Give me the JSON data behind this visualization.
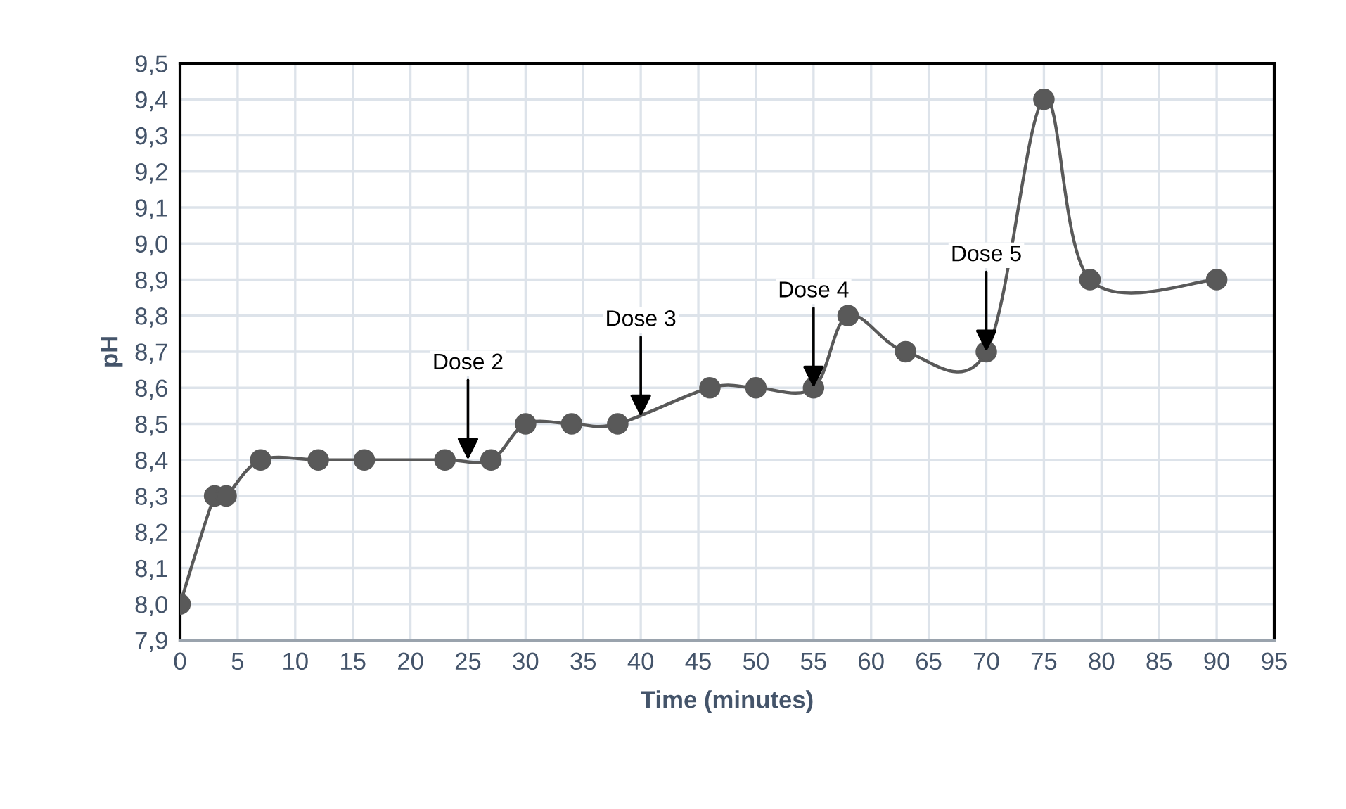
{
  "chart_data": {
    "type": "line",
    "xlabel": "Time (minutes)",
    "ylabel": "pH",
    "x": [
      0,
      3,
      4,
      7,
      12,
      16,
      23,
      27,
      30,
      34,
      38,
      46,
      50,
      55,
      58,
      63,
      70,
      75,
      79,
      90
    ],
    "series": [
      {
        "color": "#595959",
        "values": [
          8.0,
          8.3,
          8.3,
          8.4,
          8.4,
          8.4,
          8.4,
          8.4,
          8.5,
          8.5,
          8.5,
          8.6,
          8.6,
          8.6,
          8.8,
          8.7,
          8.7,
          9.4,
          8.9,
          8.9
        ]
      }
    ],
    "xlim": [
      0,
      95
    ],
    "xticks": [
      0,
      5,
      10,
      15,
      20,
      25,
      30,
      35,
      40,
      45,
      50,
      55,
      60,
      65,
      70,
      75,
      80,
      85,
      90,
      95
    ],
    "ylim": [
      7.9,
      9.5
    ],
    "yticks": [
      {
        "value": 7.9,
        "label": "7,9"
      },
      {
        "value": 8.0,
        "label": "8,0"
      },
      {
        "value": 8.1,
        "label": "8,1"
      },
      {
        "value": 8.2,
        "label": "8,2"
      },
      {
        "value": 8.3,
        "label": "8,3"
      },
      {
        "value": 8.4,
        "label": "8,4"
      },
      {
        "value": 8.5,
        "label": "8,5"
      },
      {
        "value": 8.6,
        "label": "8,6"
      },
      {
        "value": 8.7,
        "label": "8,7"
      },
      {
        "value": 8.8,
        "label": "8,8"
      },
      {
        "value": 8.9,
        "label": "8,9"
      },
      {
        "value": 9.0,
        "label": "9,0"
      },
      {
        "value": 9.1,
        "label": "9,1"
      },
      {
        "value": 9.2,
        "label": "9,2"
      },
      {
        "value": 9.3,
        "label": "9,3"
      },
      {
        "value": 9.4,
        "label": "9,4"
      },
      {
        "value": 9.5,
        "label": "9,5"
      }
    ],
    "annotations": [
      {
        "text": "Dose 2",
        "x": 25,
        "y": 8.4
      },
      {
        "text": "Dose 3",
        "x": 40,
        "y": 8.52
      },
      {
        "text": "Dose 4",
        "x": 55,
        "y": 8.6
      },
      {
        "text": "Dose 5",
        "x": 70,
        "y": 8.7
      }
    ],
    "grid": true,
    "marker": "circle",
    "line_style": "solid",
    "legend": false
  }
}
